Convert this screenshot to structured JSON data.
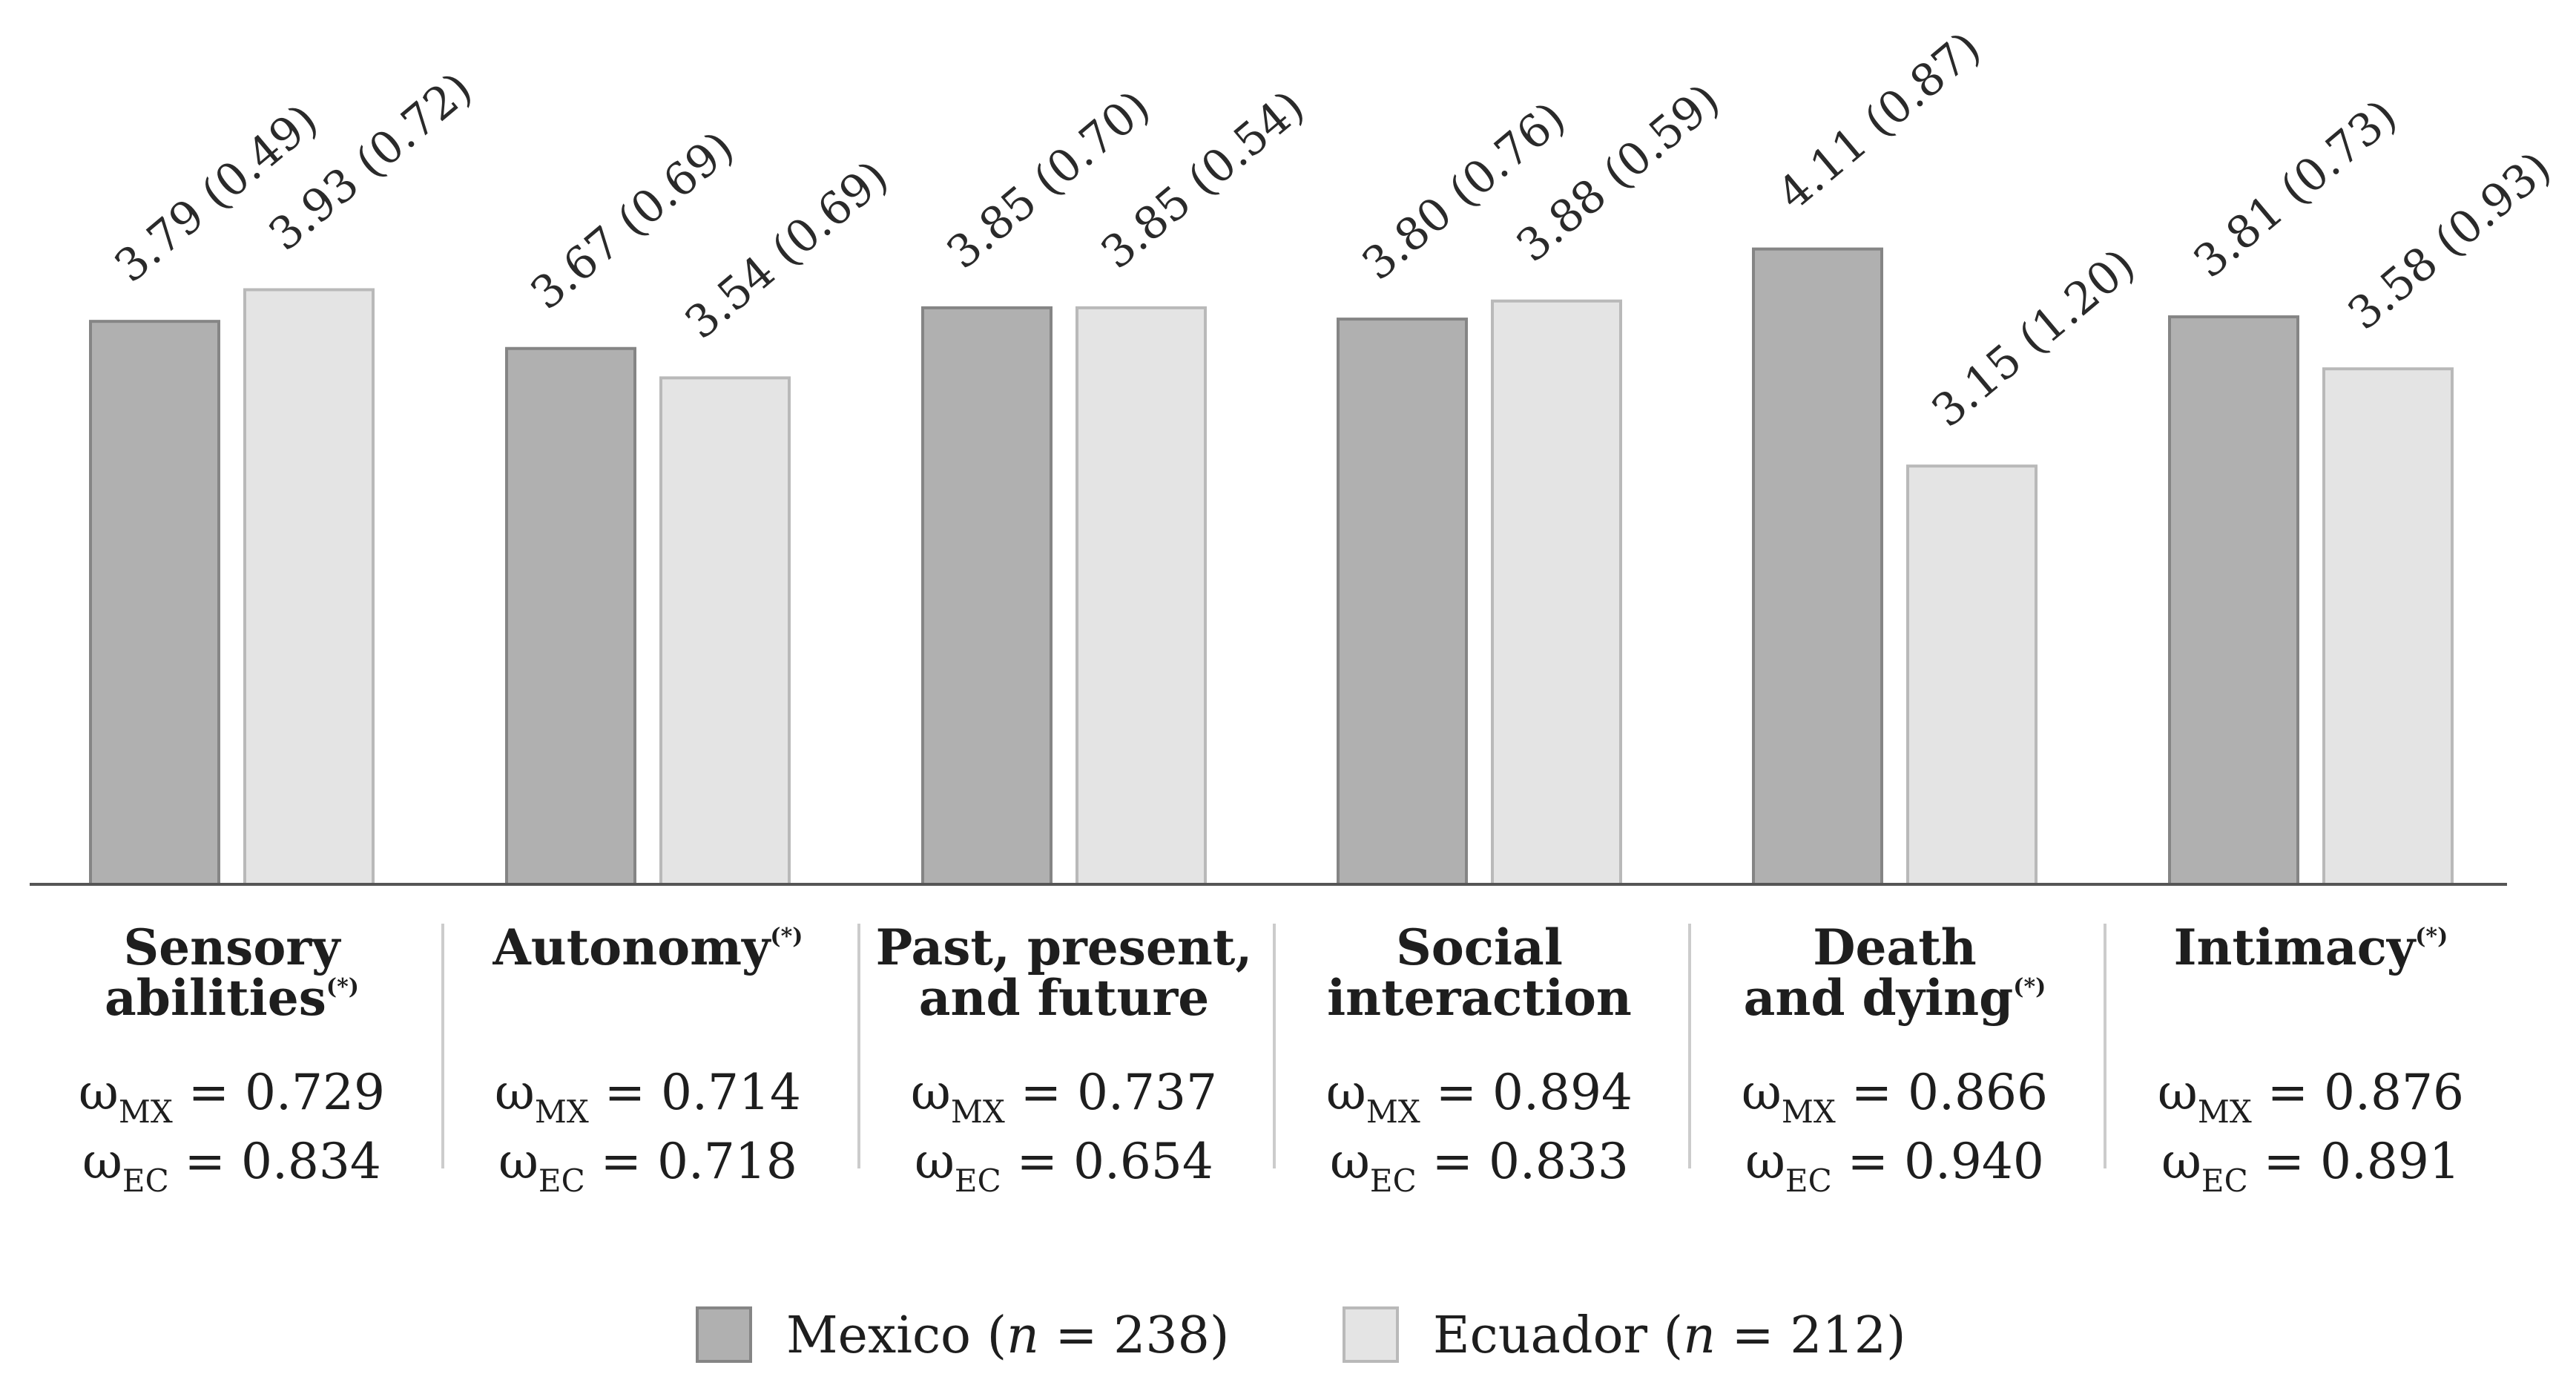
{
  "colors": {
    "mexico": "#b0b0b0",
    "mexico_border": "#858585",
    "ecuador": "#e4e4e4",
    "ecuador_border": "#b9b9b9",
    "axis": "#555555",
    "divider": "#cccccc"
  },
  "chart_data": {
    "type": "bar",
    "categories": [
      "Sensory abilities",
      "Autonomy",
      "Past, present, and future",
      "Social interaction",
      "Death and dying",
      "Intimacy"
    ],
    "series": [
      {
        "name": "Mexico (n = 238)",
        "values": [
          3.79,
          3.67,
          3.85,
          3.8,
          4.11,
          3.81
        ],
        "sd": [
          0.49,
          0.69,
          0.7,
          0.76,
          0.87,
          0.73
        ],
        "labels": [
          "3.79 (0.49)",
          "3.67 (0.69)",
          "3.85 (0.70)",
          "3.80 (0.76)",
          "4.11 (0.87)",
          "3.81 (0.73)"
        ]
      },
      {
        "name": "Ecuador (n = 212)",
        "values": [
          3.93,
          3.54,
          3.85,
          3.88,
          3.15,
          3.58
        ],
        "sd": [
          0.72,
          0.69,
          0.54,
          0.59,
          1.2,
          0.93
        ],
        "labels": [
          "3.93 (0.72)",
          "3.54 (0.69)",
          "3.85 (0.54)",
          "3.88 (0.59)",
          "3.15 (1.20)",
          "3.58 (0.93)"
        ]
      }
    ],
    "ylim": [
      1.3,
      5.0
    ],
    "grid": false,
    "legend_position": "bottom",
    "category_panels": [
      {
        "lines": [
          "Sensory",
          "abilities"
        ],
        "marker": "(*)",
        "omega_mx": "0.729",
        "omega_ec": "0.834"
      },
      {
        "lines": [
          "Autonomy"
        ],
        "marker": "(*)",
        "omega_mx": "0.714",
        "omega_ec": "0.718"
      },
      {
        "lines": [
          "Past, present,",
          "and future"
        ],
        "marker": "",
        "omega_mx": "0.737",
        "omega_ec": "0.654"
      },
      {
        "lines": [
          "Social",
          "interaction"
        ],
        "marker": "",
        "omega_mx": "0.894",
        "omega_ec": "0.833"
      },
      {
        "lines": [
          "Death",
          "and dying"
        ],
        "marker": "(*)",
        "omega_mx": "0.866",
        "omega_ec": "0.940"
      },
      {
        "lines": [
          "Intimacy"
        ],
        "marker": "(*)",
        "omega_mx": "0.876",
        "omega_ec": "0.891"
      }
    ],
    "omega_symbol": "ω",
    "omega_sub_mx": "MX",
    "omega_sub_ec": "EC",
    "legend": {
      "mexico_prefix": "Mexico (",
      "mexico_n": "n",
      "mexico_suffix": " = 238)",
      "ecuador_prefix": "Ecuador (",
      "ecuador_n": "n",
      "ecuador_suffix": " = 212)"
    }
  }
}
